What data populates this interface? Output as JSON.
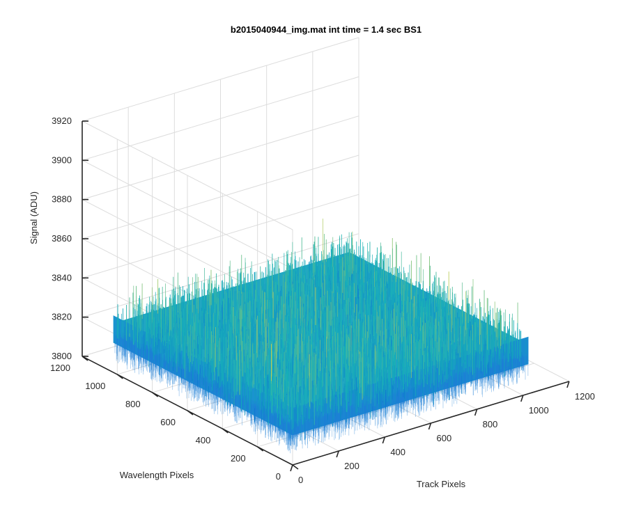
{
  "chart_data": {
    "type": "surface",
    "title": "b2015040944_img.mat int time = 1.4 sec   BS1",
    "xlabel": "Track Pixels",
    "ylabel": "Wavelength Pixels",
    "zlabel": "Signal (ADU)",
    "xlim": [
      0,
      1200
    ],
    "ylim": [
      0,
      1200
    ],
    "zlim": [
      3800,
      3920
    ],
    "x_ticks": [
      "0",
      "200",
      "400",
      "600",
      "800",
      "1000",
      "1200"
    ],
    "y_ticks": [
      "0",
      "200",
      "400",
      "600",
      "800",
      "1000",
      "1200"
    ],
    "z_ticks": [
      "3800",
      "3820",
      "3840",
      "3860",
      "3880",
      "3900",
      "3920"
    ],
    "data_extent": {
      "x": [
        1,
        1024
      ],
      "y": [
        1,
        1024
      ]
    },
    "signal_mean": 3825,
    "signal_noise_range": [
      3805,
      3900
    ],
    "grid": true,
    "colormap": "parula",
    "colors": {
      "low": "#0c6fd4",
      "mid": "#19b2b8",
      "high": "#d7d24a"
    }
  }
}
